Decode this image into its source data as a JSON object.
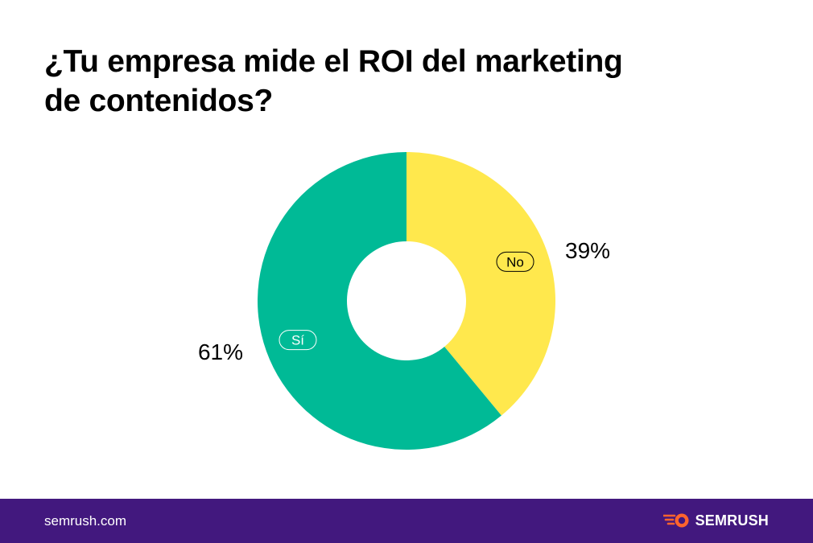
{
  "title": {
    "line1": "¿Tu empresa mide el ROI del marketing",
    "line2": "de contenidos?"
  },
  "chart_data": {
    "type": "pie",
    "variant": "donut",
    "title": "¿Tu empresa mide el ROI del marketing de contenidos?",
    "slices": [
      {
        "label": "No",
        "value": 39,
        "value_label": "39%",
        "color": "#ffe84d",
        "side": "right"
      },
      {
        "label": "Sí",
        "value": 61,
        "value_label": "61%",
        "color": "#00ba96",
        "side": "left"
      }
    ],
    "start": "12 o'clock",
    "direction": "clockwise",
    "legend": "none"
  },
  "footer": {
    "url": "semrush.com",
    "brand": "SEMRUSH",
    "logo_icon": "semrush-flame-icon",
    "background": "#42187e",
    "logo_color": "#ff642d"
  }
}
